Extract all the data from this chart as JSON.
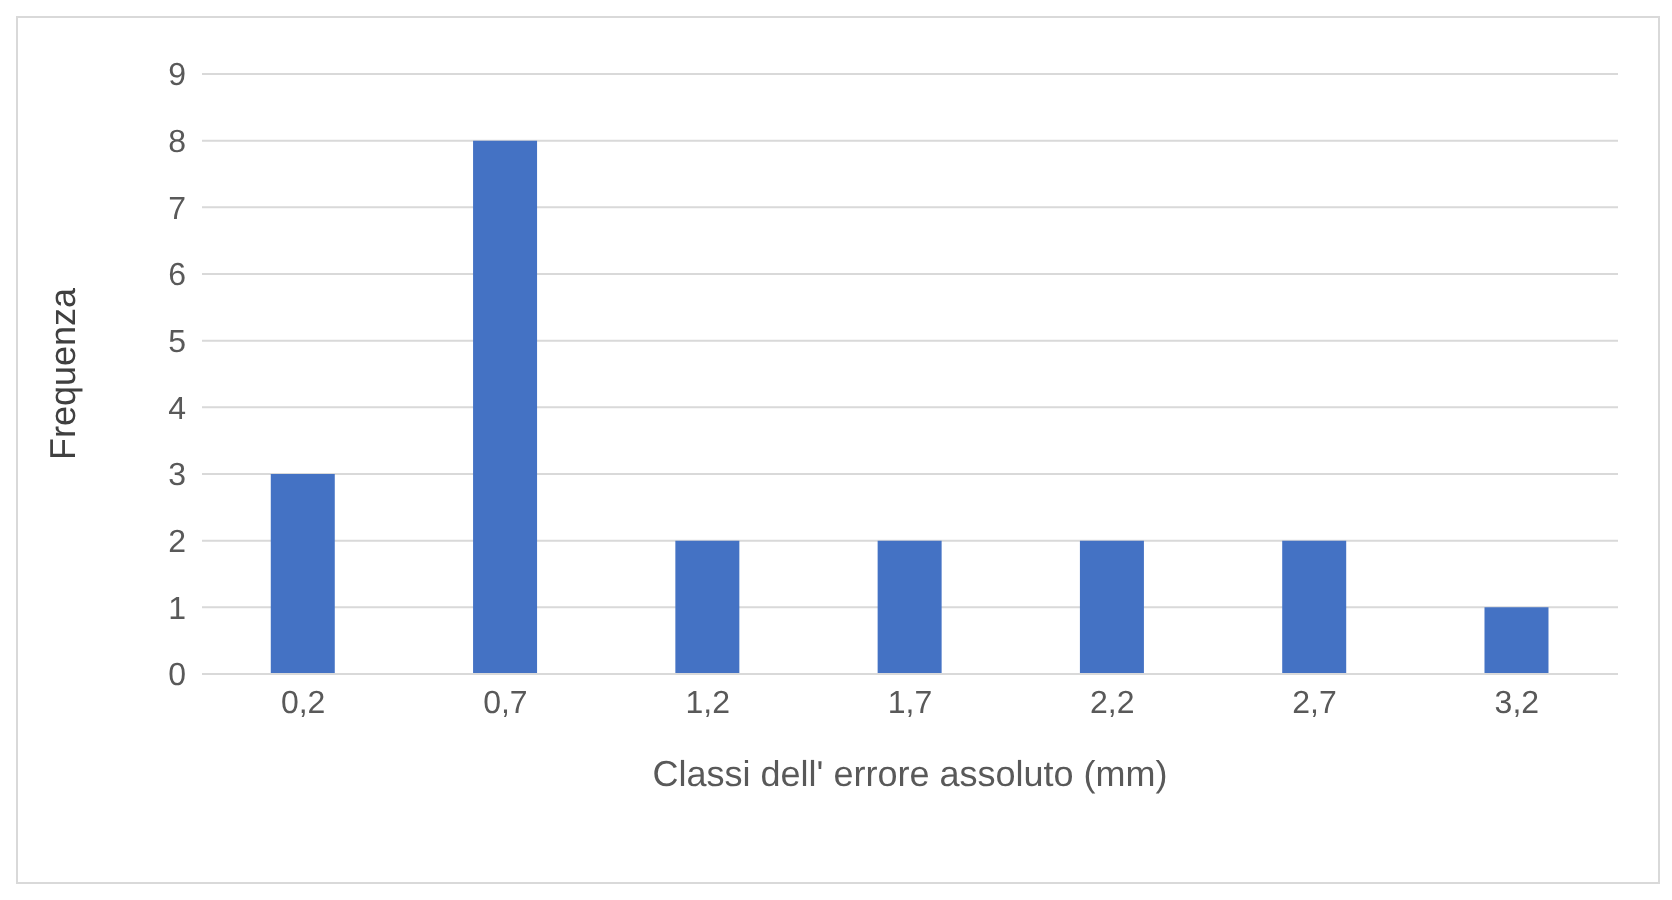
{
  "chart_data": {
    "type": "bar",
    "xlabel": "Classi dell' errore assoluto (mm)",
    "ylabel": "Frequenza",
    "categories": [
      "0,2",
      "0,7",
      "1,2",
      "1,7",
      "2,2",
      "2,7",
      "3,2"
    ],
    "values": [
      3,
      8,
      2,
      2,
      2,
      2,
      1
    ],
    "color": "#4472c4",
    "ylim": [
      0,
      9
    ],
    "yticks": [
      0,
      1,
      2,
      3,
      4,
      5,
      6,
      7,
      8,
      9
    ],
    "grid": "y",
    "legend": false
  }
}
